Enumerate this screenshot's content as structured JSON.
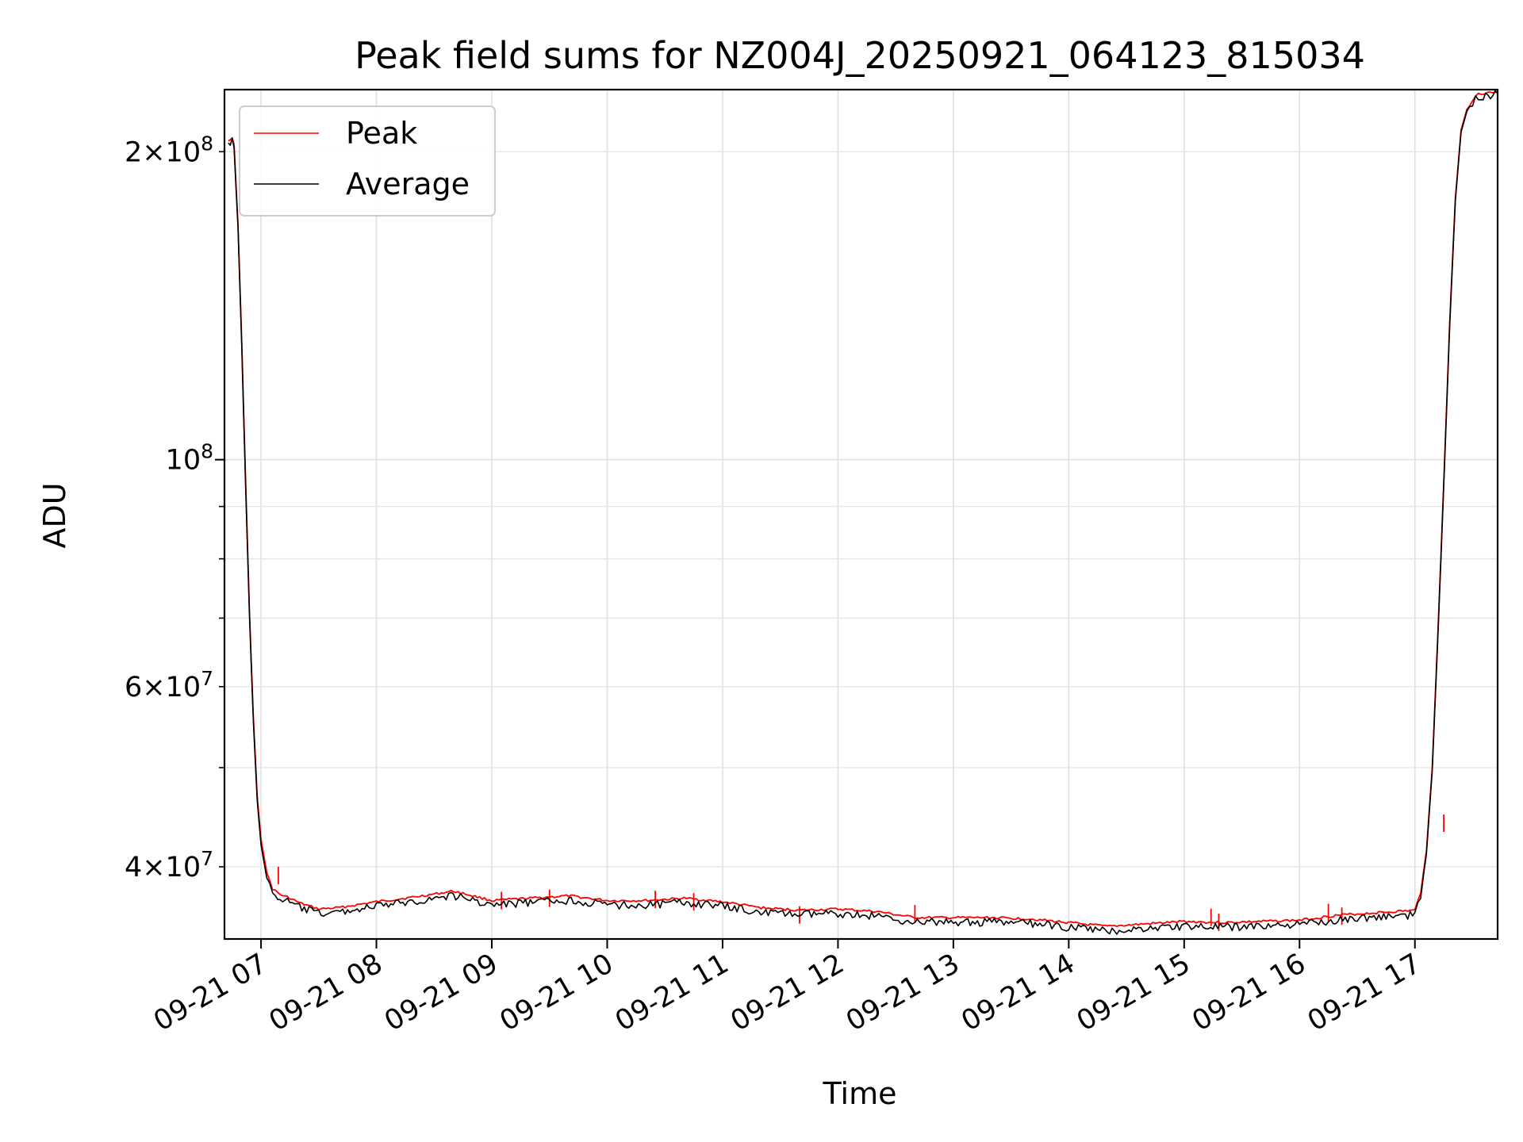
{
  "chart_data": {
    "type": "line",
    "title": "Peak field sums for NZ004J_20250921_064123_815034",
    "xlabel": "Time",
    "ylabel": "ADU",
    "yscale": "log",
    "ylim": [
      34000000,
      230000000
    ],
    "xlim": [
      "2025-09-21T06:41",
      "2025-09-21T17:43"
    ],
    "grid": true,
    "legend_position": "upper-left",
    "x_ticks": [
      "2025-09-21T07:00",
      "2025-09-21T08:00",
      "2025-09-21T09:00",
      "2025-09-21T10:00",
      "2025-09-21T11:00",
      "2025-09-21T12:00",
      "2025-09-21T13:00",
      "2025-09-21T14:00",
      "2025-09-21T15:00",
      "2025-09-21T16:00",
      "2025-09-21T17:00"
    ],
    "x_tick_labels": [
      "09-21 07",
      "09-21 08",
      "09-21 09",
      "09-21 10",
      "09-21 11",
      "09-21 12",
      "09-21 13",
      "09-21 14",
      "09-21 15",
      "09-21 16",
      "09-21 17"
    ],
    "y_major_ticks": [
      {
        "value": 100000000,
        "mantissa": "",
        "exponent": "8"
      }
    ],
    "y_minor_ticks": [
      {
        "value": 40000000,
        "mantissa": "4",
        "exponent": "7"
      },
      {
        "value": 50000000,
        "mantissa": "",
        "exponent": ""
      },
      {
        "value": 60000000,
        "mantissa": "6",
        "exponent": "7"
      },
      {
        "value": 70000000,
        "mantissa": "",
        "exponent": ""
      },
      {
        "value": 80000000,
        "mantissa": "",
        "exponent": ""
      },
      {
        "value": 90000000,
        "mantissa": "",
        "exponent": ""
      },
      {
        "value": 200000000,
        "mantissa": "2",
        "exponent": "8"
      }
    ],
    "series": [
      {
        "name": "Peak",
        "color": "#ff0000",
        "points": [
          [
            "2025-09-21T06:43",
            205000000
          ],
          [
            "2025-09-21T06:45",
            207000000
          ],
          [
            "2025-09-21T06:46",
            203000000
          ],
          [
            "2025-09-21T06:48",
            170000000
          ],
          [
            "2025-09-21T06:50",
            130000000
          ],
          [
            "2025-09-21T06:52",
            95000000
          ],
          [
            "2025-09-21T06:54",
            71000000
          ],
          [
            "2025-09-21T06:56",
            56000000
          ],
          [
            "2025-09-21T06:58",
            47000000
          ],
          [
            "2025-09-21T07:00",
            42500000
          ],
          [
            "2025-09-21T07:03",
            39500000
          ],
          [
            "2025-09-21T07:06",
            38100000
          ],
          [
            "2025-09-21T07:10",
            37600000
          ],
          [
            "2025-09-21T07:15",
            37300000
          ],
          [
            "2025-09-21T07:20",
            36900000
          ],
          [
            "2025-09-21T07:30",
            36400000
          ],
          [
            "2025-09-21T07:40",
            36500000
          ],
          [
            "2025-09-21T08:00",
            37000000
          ],
          [
            "2025-09-21T08:20",
            37400000
          ],
          [
            "2025-09-21T08:40",
            37900000
          ],
          [
            "2025-09-21T08:50",
            37500000
          ],
          [
            "2025-09-21T09:00",
            37100000
          ],
          [
            "2025-09-21T09:20",
            37300000
          ],
          [
            "2025-09-21T09:40",
            37500000
          ],
          [
            "2025-09-21T10:00",
            37100000
          ],
          [
            "2025-09-21T10:20",
            37100000
          ],
          [
            "2025-09-21T10:40",
            37300000
          ],
          [
            "2025-09-21T11:00",
            37000000
          ],
          [
            "2025-09-21T11:20",
            36500000
          ],
          [
            "2025-09-21T11:40",
            36300000
          ],
          [
            "2025-09-21T12:00",
            36400000
          ],
          [
            "2025-09-21T12:20",
            36200000
          ],
          [
            "2025-09-21T12:40",
            35700000
          ],
          [
            "2025-09-21T13:00",
            35700000
          ],
          [
            "2025-09-21T13:20",
            35700000
          ],
          [
            "2025-09-21T13:40",
            35600000
          ],
          [
            "2025-09-21T14:00",
            35300000
          ],
          [
            "2025-09-21T14:20",
            35000000
          ],
          [
            "2025-09-21T14:40",
            35200000
          ],
          [
            "2025-09-21T15:00",
            35400000
          ],
          [
            "2025-09-21T15:20",
            35300000
          ],
          [
            "2025-09-21T15:40",
            35400000
          ],
          [
            "2025-09-21T16:00",
            35500000
          ],
          [
            "2025-09-21T16:20",
            35900000
          ],
          [
            "2025-09-21T16:40",
            36100000
          ],
          [
            "2025-09-21T17:00",
            36300000
          ],
          [
            "2025-09-21T17:03",
            37800000
          ],
          [
            "2025-09-21T17:06",
            41500000
          ],
          [
            "2025-09-21T17:09",
            50000000
          ],
          [
            "2025-09-21T17:12",
            68000000
          ],
          [
            "2025-09-21T17:15",
            95000000
          ],
          [
            "2025-09-21T17:18",
            135000000
          ],
          [
            "2025-09-21T17:21",
            180000000
          ],
          [
            "2025-09-21T17:24",
            210000000
          ],
          [
            "2025-09-21T17:27",
            220000000
          ],
          [
            "2025-09-21T17:30",
            225000000
          ],
          [
            "2025-09-21T17:33",
            228000000
          ],
          [
            "2025-09-21T17:43",
            229000000
          ]
        ]
      },
      {
        "name": "Average",
        "color": "#000000",
        "points": [
          [
            "2025-09-21T06:43",
            204000000
          ],
          [
            "2025-09-21T06:45",
            206000000
          ],
          [
            "2025-09-21T06:46",
            202000000
          ],
          [
            "2025-09-21T06:48",
            169000000
          ],
          [
            "2025-09-21T06:50",
            129000000
          ],
          [
            "2025-09-21T06:52",
            94000000
          ],
          [
            "2025-09-21T06:54",
            70500000
          ],
          [
            "2025-09-21T06:56",
            55500000
          ],
          [
            "2025-09-21T06:58",
            46500000
          ],
          [
            "2025-09-21T07:00",
            42000000
          ],
          [
            "2025-09-21T07:03",
            39000000
          ],
          [
            "2025-09-21T07:06",
            37800000
          ],
          [
            "2025-09-21T07:10",
            37300000
          ],
          [
            "2025-09-21T07:15",
            37000000
          ],
          [
            "2025-09-21T07:20",
            36600000
          ],
          [
            "2025-09-21T07:30",
            36100000
          ],
          [
            "2025-09-21T07:40",
            36200000
          ],
          [
            "2025-09-21T08:00",
            36700000
          ],
          [
            "2025-09-21T08:20",
            37100000
          ],
          [
            "2025-09-21T08:40",
            37600000
          ],
          [
            "2025-09-21T08:50",
            37200000
          ],
          [
            "2025-09-21T09:00",
            36800000
          ],
          [
            "2025-09-21T09:20",
            37000000
          ],
          [
            "2025-09-21T09:40",
            37200000
          ],
          [
            "2025-09-21T10:00",
            36800000
          ],
          [
            "2025-09-21T10:20",
            36800000
          ],
          [
            "2025-09-21T10:40",
            37000000
          ],
          [
            "2025-09-21T11:00",
            36700000
          ],
          [
            "2025-09-21T11:20",
            36200000
          ],
          [
            "2025-09-21T11:40",
            36000000
          ],
          [
            "2025-09-21T12:00",
            36100000
          ],
          [
            "2025-09-21T12:20",
            35900000
          ],
          [
            "2025-09-21T12:40",
            35400000
          ],
          [
            "2025-09-21T13:00",
            35400000
          ],
          [
            "2025-09-21T13:20",
            35400000
          ],
          [
            "2025-09-21T13:40",
            35300000
          ],
          [
            "2025-09-21T14:00",
            35000000
          ],
          [
            "2025-09-21T14:20",
            34700000
          ],
          [
            "2025-09-21T14:40",
            34900000
          ],
          [
            "2025-09-21T15:00",
            35100000
          ],
          [
            "2025-09-21T15:20",
            35000000
          ],
          [
            "2025-09-21T15:40",
            35100000
          ],
          [
            "2025-09-21T16:00",
            35200000
          ],
          [
            "2025-09-21T16:20",
            35600000
          ],
          [
            "2025-09-21T16:40",
            35800000
          ],
          [
            "2025-09-21T17:00",
            36000000
          ],
          [
            "2025-09-21T17:03",
            37500000
          ],
          [
            "2025-09-21T17:06",
            41200000
          ],
          [
            "2025-09-21T17:09",
            49700000
          ],
          [
            "2025-09-21T17:12",
            67500000
          ],
          [
            "2025-09-21T17:15",
            94500000
          ],
          [
            "2025-09-21T17:18",
            134000000
          ],
          [
            "2025-09-21T17:21",
            179000000
          ],
          [
            "2025-09-21T17:24",
            209000000
          ],
          [
            "2025-09-21T17:27",
            219000000
          ],
          [
            "2025-09-21T17:30",
            224000000
          ],
          [
            "2025-09-21T17:33",
            227000000
          ],
          [
            "2025-09-21T17:43",
            228500000
          ]
        ]
      }
    ],
    "peak_spikes": [
      [
        "2025-09-21T07:09",
        40000000
      ],
      [
        "2025-09-21T09:05",
        37800000
      ],
      [
        "2025-09-21T09:30",
        38000000
      ],
      [
        "2025-09-21T10:25",
        37900000
      ],
      [
        "2025-09-21T10:45",
        37700000
      ],
      [
        "2025-09-21T11:40",
        36600000
      ],
      [
        "2025-09-21T12:40",
        36700000
      ],
      [
        "2025-09-21T15:14",
        36400000
      ],
      [
        "2025-09-21T15:18",
        36000000
      ],
      [
        "2025-09-21T16:15",
        36800000
      ],
      [
        "2025-09-21T16:22",
        36500000
      ],
      [
        "2025-09-21T17:15",
        45000000
      ]
    ]
  }
}
